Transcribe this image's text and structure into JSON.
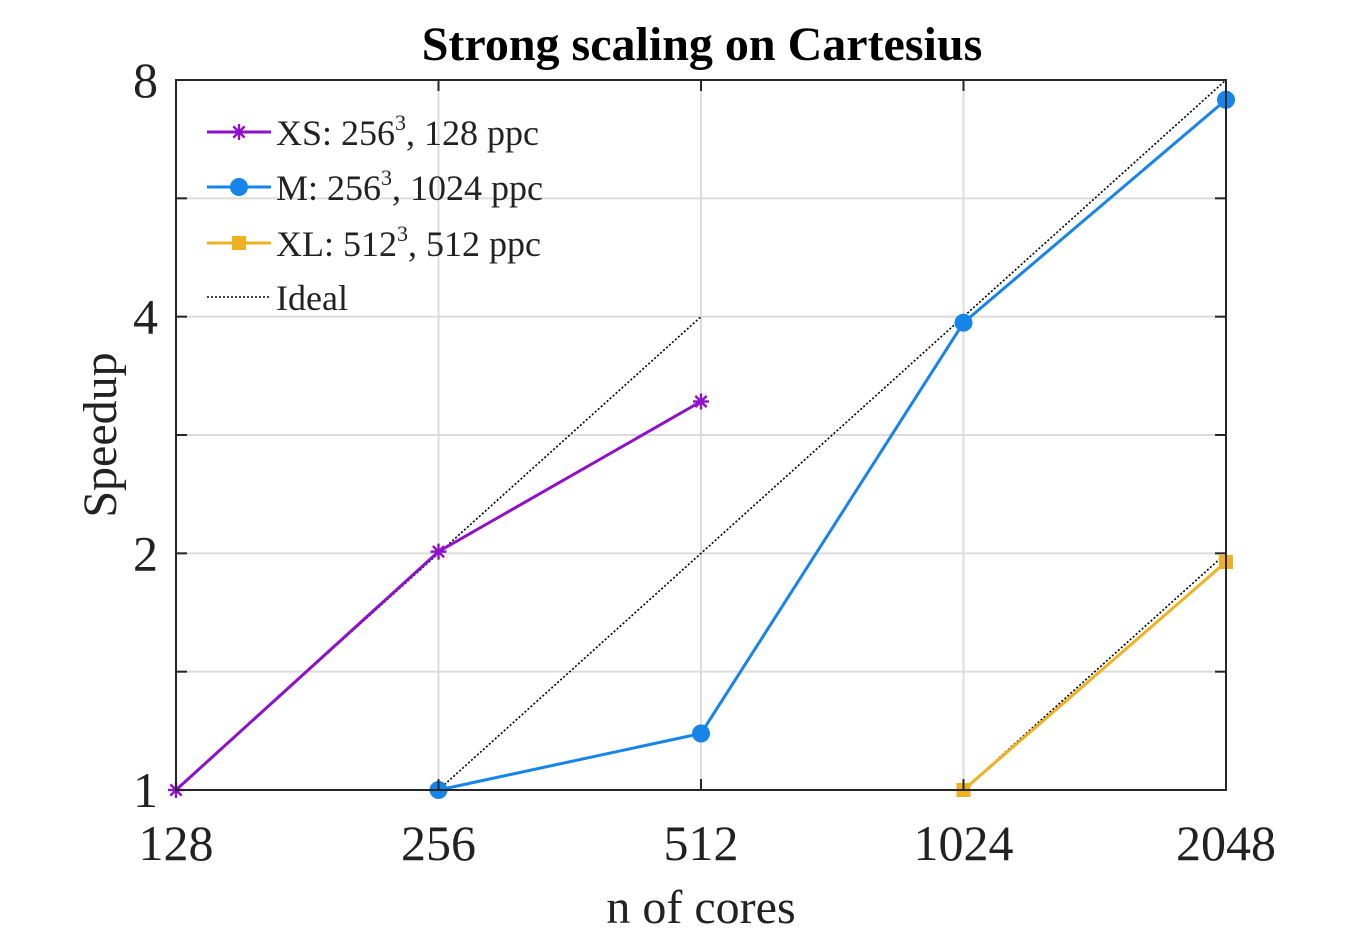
{
  "chart_data": {
    "type": "line",
    "title": "Strong scaling on Cartesius",
    "xlabel": "n of cores",
    "ylabel": "Speedup",
    "xscale": "log2",
    "yscale": "log2",
    "xlim": [
      128,
      2048
    ],
    "ylim": [
      1,
      8
    ],
    "xticks": [
      128,
      256,
      512,
      1024,
      2048
    ],
    "xtick_labels": [
      "128",
      "256",
      "512",
      "1024",
      "2048"
    ],
    "yticks": [
      1,
      2,
      4,
      8
    ],
    "ytick_labels": [
      "1",
      "2",
      "4",
      "8"
    ],
    "y_minor_ticks": [
      1.4142,
      2.8284,
      5.6569
    ],
    "grid": true,
    "legend_position": "top-left",
    "series": [
      {
        "name": "XS",
        "label_prefix": "XS: 256",
        "label_sup": "3",
        "label_suffix": ", 128 ppc",
        "color": "#8e10c9",
        "marker": "asterisk",
        "x": [
          128,
          256,
          512
        ],
        "y": [
          1.0,
          2.01,
          3.12
        ]
      },
      {
        "name": "M",
        "label_prefix": "M: 256",
        "label_sup": "3",
        "label_suffix": ", 1024 ppc",
        "color": "#1784ea",
        "marker": "circle",
        "x": [
          256,
          512,
          1024,
          2048
        ],
        "y": [
          1.0,
          1.18,
          3.93,
          7.55
        ]
      },
      {
        "name": "XL",
        "label_prefix": "XL: 512",
        "label_sup": "3",
        "label_suffix": ", 512 ppc",
        "color": "#eeb121",
        "marker": "square",
        "x": [
          1024,
          2048
        ],
        "y": [
          1.0,
          1.95
        ]
      }
    ],
    "ideal": {
      "label": "Ideal",
      "color": "#000000",
      "lines": [
        {
          "x": [
            128,
            512
          ],
          "y": [
            1,
            4
          ]
        },
        {
          "x": [
            256,
            2048
          ],
          "y": [
            1,
            8
          ]
        },
        {
          "x": [
            1024,
            2048
          ],
          "y": [
            1,
            2
          ]
        }
      ]
    }
  }
}
